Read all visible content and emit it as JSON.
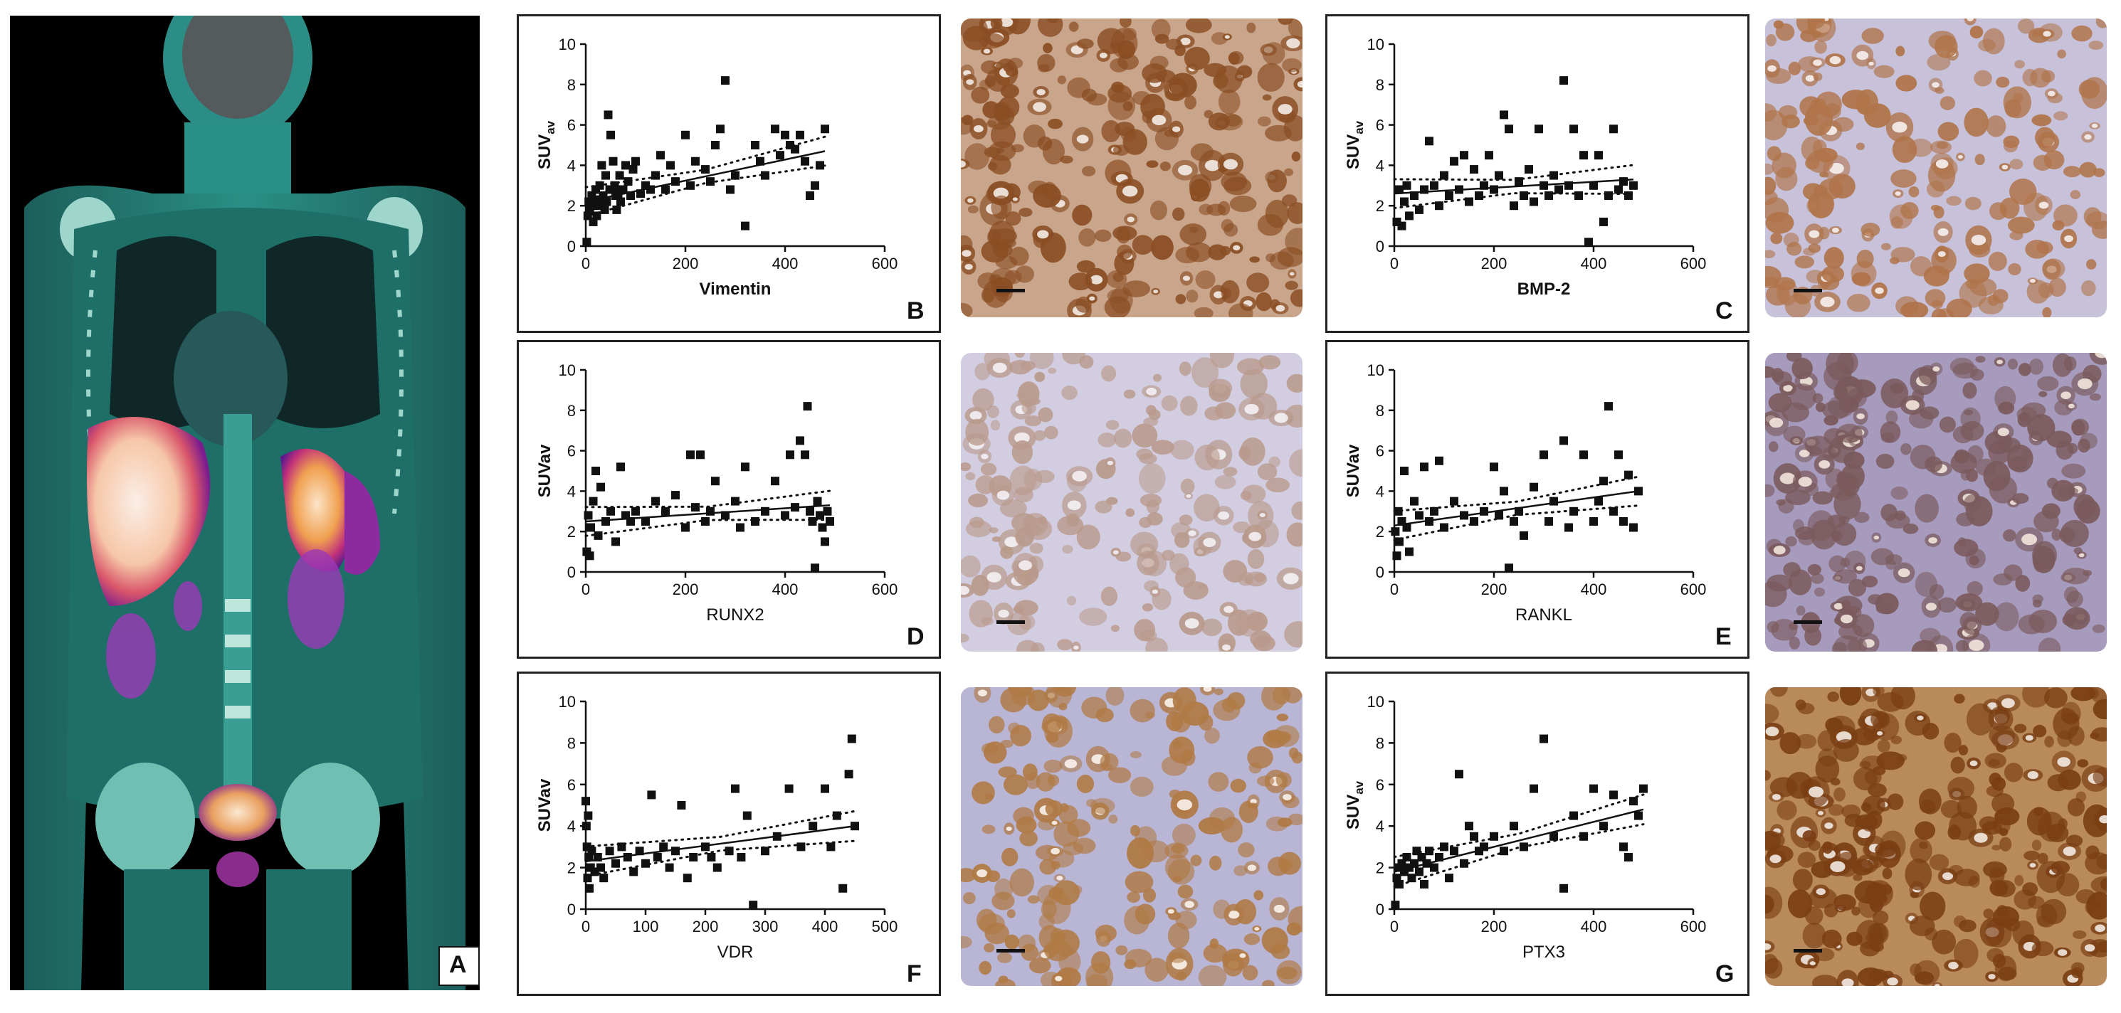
{
  "figure": {
    "panel_a_label": "A",
    "panels": [
      {
        "id": "B",
        "label": "B",
        "xlabel": "Vimentin",
        "ylabel_main": "SUV",
        "ylabel_sub": "av",
        "xmax": 600,
        "xticks": [
          0,
          200,
          400,
          600
        ],
        "yticks": [
          0,
          2,
          4,
          6,
          8,
          10
        ],
        "xlabel_bold": true
      },
      {
        "id": "C",
        "label": "C",
        "xlabel": "BMP-2",
        "ylabel_main": "SUV",
        "ylabel_sub": "av",
        "xmax": 600,
        "xticks": [
          0,
          200,
          400,
          600
        ],
        "yticks": [
          0,
          2,
          4,
          6,
          8,
          10
        ],
        "xlabel_bold": true
      },
      {
        "id": "D",
        "label": "D",
        "xlabel": "RUNX2",
        "ylabel_main": "SUVav",
        "ylabel_sub": "",
        "xmax": 600,
        "xticks": [
          0,
          200,
          400,
          600
        ],
        "yticks": [
          0,
          2,
          4,
          6,
          8,
          10
        ],
        "xlabel_bold": false
      },
      {
        "id": "E",
        "label": "E",
        "xlabel": "RANKL",
        "ylabel_main": "SUVav",
        "ylabel_sub": "",
        "xmax": 600,
        "xticks": [
          0,
          200,
          400,
          600
        ],
        "yticks": [
          0,
          2,
          4,
          6,
          8,
          10
        ],
        "xlabel_bold": false
      },
      {
        "id": "F",
        "label": "F",
        "xlabel": "VDR",
        "ylabel_main": "SUVav",
        "ylabel_sub": "",
        "xmax": 500,
        "xticks": [
          0,
          100,
          200,
          300,
          400,
          500
        ],
        "yticks": [
          0,
          2,
          4,
          6,
          8,
          10
        ],
        "xlabel_bold": false
      },
      {
        "id": "G",
        "label": "G",
        "xlabel": "PTX3",
        "ylabel_main": "SUV",
        "ylabel_sub": "av",
        "xmax": 600,
        "xticks": [
          0,
          200,
          400,
          600
        ],
        "yticks": [
          0,
          2,
          4,
          6,
          8,
          10
        ],
        "xlabel_bold": false
      }
    ],
    "colors": {
      "axis": "#111111",
      "ct_teal": "#2a8f86",
      "stain_brown": "#8a4e24",
      "stain_blue": "#b7b4d2"
    }
  },
  "chart_data": [
    {
      "type": "scatter",
      "title": "",
      "xlabel": "Vimentin",
      "ylabel": "SUVav",
      "xlim": [
        0,
        600
      ],
      "ylim": [
        0,
        10
      ],
      "x": [
        2,
        4,
        6,
        8,
        10,
        12,
        15,
        18,
        20,
        22,
        25,
        28,
        30,
        32,
        35,
        38,
        40,
        42,
        45,
        48,
        50,
        55,
        58,
        60,
        62,
        65,
        68,
        70,
        75,
        80,
        85,
        90,
        95,
        100,
        110,
        120,
        130,
        140,
        150,
        160,
        170,
        180,
        200,
        210,
        220,
        240,
        250,
        260,
        270,
        280,
        290,
        300,
        320,
        340,
        350,
        360,
        380,
        390,
        400,
        410,
        420,
        430,
        440,
        450,
        460,
        470,
        480
      ],
      "y": [
        0.2,
        1.5,
        2.2,
        1.8,
        2.0,
        2.5,
        1.2,
        2.3,
        2.8,
        1.5,
        2.0,
        3.0,
        2.2,
        4.0,
        2.5,
        1.8,
        3.5,
        2.2,
        6.5,
        2.8,
        5.5,
        4.2,
        3.0,
        2.5,
        1.8,
        2.6,
        3.5,
        2.2,
        2.8,
        4.0,
        3.2,
        2.5,
        3.8,
        4.2,
        2.6,
        3.0,
        2.8,
        3.5,
        4.5,
        2.8,
        4.0,
        3.2,
        5.5,
        3.0,
        4.2,
        3.8,
        3.2,
        5.0,
        5.8,
        8.2,
        2.8,
        3.5,
        1.0,
        5.0,
        4.2,
        3.5,
        5.8,
        4.5,
        5.5,
        5.0,
        4.8,
        5.5,
        4.2,
        2.5,
        3.0,
        4.0,
        5.8
      ],
      "fit_line": {
        "x": [
          0,
          480
        ],
        "y": [
          2.2,
          4.7
        ]
      }
    },
    {
      "type": "scatter",
      "title": "",
      "xlabel": "BMP-2",
      "ylabel": "SUVav",
      "xlim": [
        0,
        600
      ],
      "ylim": [
        0,
        10
      ],
      "x": [
        5,
        10,
        15,
        20,
        25,
        30,
        40,
        50,
        60,
        70,
        80,
        90,
        100,
        110,
        120,
        130,
        140,
        150,
        160,
        170,
        180,
        190,
        200,
        210,
        220,
        230,
        240,
        250,
        260,
        270,
        280,
        290,
        300,
        310,
        320,
        330,
        340,
        350,
        360,
        370,
        380,
        390,
        400,
        410,
        420,
        430,
        440,
        450,
        460,
        470,
        480
      ],
      "y": [
        1.2,
        2.8,
        1.0,
        2.2,
        3.0,
        1.5,
        2.5,
        1.8,
        2.8,
        5.2,
        3.0,
        2.0,
        3.5,
        2.5,
        4.2,
        2.8,
        4.5,
        2.2,
        3.8,
        2.5,
        3.0,
        4.5,
        2.8,
        3.5,
        6.5,
        5.8,
        2.0,
        3.2,
        2.5,
        3.8,
        2.2,
        5.8,
        3.0,
        2.5,
        3.5,
        2.8,
        8.2,
        3.0,
        5.8,
        2.5,
        4.5,
        0.2,
        3.0,
        4.5,
        1.2,
        2.5,
        5.8,
        2.8,
        3.2,
        2.5,
        3.0
      ],
      "fit_line": {
        "x": [
          0,
          480
        ],
        "y": [
          2.6,
          3.3
        ]
      }
    },
    {
      "type": "scatter",
      "title": "",
      "xlabel": "RUNX2",
      "ylabel": "SUVav",
      "xlim": [
        0,
        600
      ],
      "ylim": [
        0,
        10
      ],
      "x": [
        2,
        5,
        8,
        10,
        15,
        20,
        25,
        30,
        40,
        50,
        60,
        70,
        80,
        90,
        100,
        120,
        140,
        160,
        180,
        200,
        210,
        220,
        230,
        240,
        250,
        260,
        280,
        300,
        310,
        320,
        340,
        360,
        380,
        400,
        410,
        420,
        430,
        440,
        445,
        450,
        455,
        460,
        465,
        470,
        475,
        480,
        485,
        490
      ],
      "y": [
        1.0,
        2.8,
        0.8,
        2.2,
        3.5,
        5.0,
        1.8,
        4.2,
        2.5,
        3.0,
        1.5,
        5.2,
        2.8,
        2.5,
        3.0,
        2.5,
        3.5,
        3.0,
        3.8,
        2.2,
        5.8,
        3.2,
        5.8,
        2.5,
        3.0,
        4.5,
        2.8,
        3.5,
        2.2,
        5.2,
        2.5,
        3.0,
        4.5,
        2.8,
        5.8,
        3.2,
        6.5,
        5.8,
        8.2,
        3.0,
        2.5,
        0.2,
        3.5,
        2.8,
        2.2,
        1.5,
        3.0,
        2.5
      ],
      "fit_line": {
        "x": [
          0,
          490
        ],
        "y": [
          2.5,
          3.3
        ]
      }
    },
    {
      "type": "scatter",
      "title": "",
      "xlabel": "RANKL",
      "ylabel": "SUVav",
      "xlim": [
        0,
        600
      ],
      "ylim": [
        0,
        10
      ],
      "x": [
        2,
        5,
        8,
        10,
        15,
        20,
        25,
        30,
        40,
        50,
        60,
        70,
        80,
        90,
        100,
        120,
        140,
        160,
        180,
        200,
        210,
        220,
        230,
        240,
        250,
        260,
        280,
        300,
        310,
        320,
        340,
        350,
        360,
        380,
        400,
        410,
        420,
        430,
        440,
        450,
        460,
        470,
        480,
        490
      ],
      "y": [
        2.0,
        0.8,
        3.0,
        1.5,
        2.5,
        5.0,
        2.2,
        1.0,
        3.5,
        2.8,
        5.2,
        2.5,
        3.0,
        5.5,
        2.2,
        3.5,
        2.8,
        2.5,
        3.0,
        5.2,
        2.8,
        4.0,
        0.2,
        2.5,
        3.0,
        1.8,
        4.2,
        5.8,
        2.5,
        3.5,
        6.5,
        2.2,
        3.0,
        5.8,
        2.5,
        3.5,
        4.5,
        8.2,
        3.0,
        5.8,
        2.5,
        4.8,
        2.2,
        4.0
      ],
      "fit_line": {
        "x": [
          0,
          490
        ],
        "y": [
          2.3,
          4.0
        ]
      }
    },
    {
      "type": "scatter",
      "title": "",
      "xlabel": "VDR",
      "ylabel": "SUVav",
      "xlim": [
        0,
        500
      ],
      "ylim": [
        0,
        10
      ],
      "x": [
        0,
        1,
        2,
        3,
        4,
        5,
        6,
        8,
        10,
        15,
        20,
        25,
        30,
        40,
        50,
        60,
        70,
        80,
        90,
        100,
        110,
        120,
        130,
        140,
        150,
        160,
        170,
        180,
        200,
        210,
        220,
        240,
        250,
        260,
        270,
        280,
        300,
        320,
        340,
        360,
        380,
        400,
        410,
        420,
        430,
        440,
        445,
        450
      ],
      "y": [
        5.2,
        4.0,
        3.0,
        1.5,
        4.5,
        2.5,
        1.0,
        2.0,
        2.8,
        1.8,
        2.5,
        2.0,
        1.5,
        2.8,
        2.2,
        3.0,
        2.5,
        1.8,
        2.8,
        2.2,
        5.5,
        2.5,
        3.0,
        2.0,
        2.8,
        5.0,
        1.5,
        2.5,
        3.0,
        2.5,
        2.0,
        2.8,
        5.8,
        2.5,
        4.5,
        0.2,
        2.8,
        3.5,
        5.8,
        3.0,
        4.0,
        5.8,
        3.0,
        4.5,
        1.0,
        6.5,
        8.2,
        4.0
      ],
      "fit_line": {
        "x": [
          0,
          450
        ],
        "y": [
          2.3,
          4.0
        ]
      }
    },
    {
      "type": "scatter",
      "title": "",
      "xlabel": "PTX3",
      "ylabel": "SUVav",
      "xlim": [
        0,
        600
      ],
      "ylim": [
        0,
        10
      ],
      "x": [
        2,
        5,
        8,
        10,
        15,
        20,
        25,
        30,
        35,
        40,
        45,
        50,
        55,
        60,
        65,
        70,
        80,
        90,
        100,
        110,
        120,
        130,
        140,
        150,
        160,
        170,
        180,
        200,
        220,
        240,
        260,
        280,
        300,
        320,
        340,
        360,
        380,
        400,
        420,
        440,
        460,
        470,
        480,
        490,
        500
      ],
      "y": [
        0.2,
        1.5,
        2.0,
        1.2,
        2.2,
        1.8,
        2.5,
        2.0,
        1.5,
        2.2,
        2.8,
        1.8,
        2.5,
        1.2,
        2.2,
        2.8,
        2.0,
        2.5,
        3.0,
        1.5,
        2.8,
        6.5,
        2.2,
        4.0,
        3.5,
        2.8,
        3.0,
        3.5,
        2.8,
        4.0,
        3.0,
        5.8,
        8.2,
        3.5,
        1.0,
        4.5,
        3.5,
        5.8,
        4.0,
        5.5,
        3.0,
        2.5,
        5.2,
        4.5,
        5.8
      ],
      "fit_line": {
        "x": [
          0,
          500
        ],
        "y": [
          1.8,
          4.8
        ]
      }
    }
  ]
}
